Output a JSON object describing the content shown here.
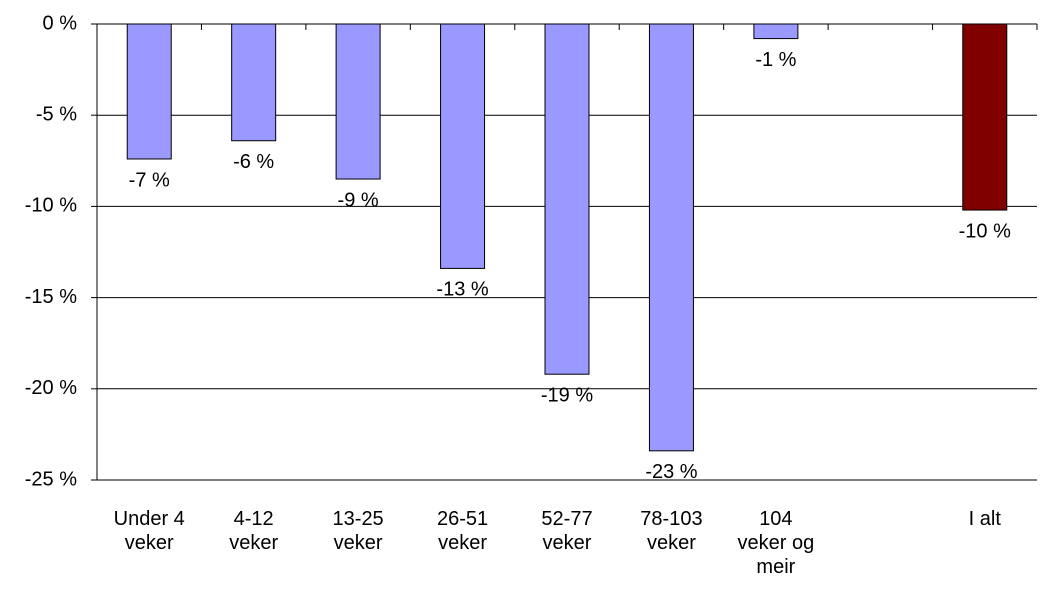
{
  "chart_data": {
    "type": "bar",
    "categories": [
      "Under 4 veker",
      "4-12 veker",
      "13-25 veker",
      "26-51 veker",
      "52-77 veker",
      "78-103 veker",
      "104 veker og meir",
      null,
      "I alt"
    ],
    "values": [
      -7.4,
      -6.4,
      -8.5,
      -13.4,
      -19.2,
      -23.4,
      -0.8,
      null,
      -10.2
    ],
    "value_labels": [
      "-7 %",
      "-6 %",
      "-9 %",
      "-13 %",
      "-19 %",
      "-23 %",
      "-1 %",
      null,
      "-10 %"
    ],
    "colors": [
      "#9999ff",
      "#9999ff",
      "#9999ff",
      "#9999ff",
      "#9999ff",
      "#9999ff",
      "#9999ff",
      null,
      "#800000"
    ],
    "ylim": [
      -25,
      0
    ],
    "yticks": [
      {
        "value": 0,
        "label": "0 %"
      },
      {
        "value": -5,
        "label": "-5 %"
      },
      {
        "value": -10,
        "label": "-10 %"
      },
      {
        "value": -15,
        "label": "-15 %"
      },
      {
        "value": -20,
        "label": "-20 %"
      },
      {
        "value": -25,
        "label": "-25 %"
      }
    ],
    "grid": true
  }
}
